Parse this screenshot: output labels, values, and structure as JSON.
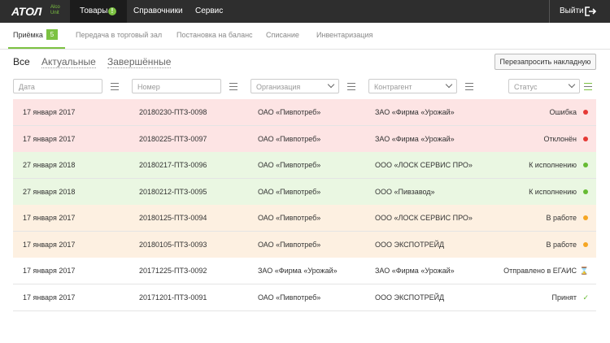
{
  "header": {
    "logo": "АТОЛ",
    "logo_sub": [
      "Alco",
      "Unit"
    ],
    "nav": [
      {
        "label": "Товары",
        "badge": "!"
      },
      {
        "label": "Справочники"
      },
      {
        "label": "Сервис"
      }
    ],
    "logout": "Выйти"
  },
  "subnav": {
    "tabs": [
      {
        "label": "Приёмка",
        "badge": "5"
      },
      {
        "label": "Передача в торговый зал"
      },
      {
        "label": "Постановка на баланс"
      },
      {
        "label": "Списание"
      },
      {
        "label": "Инвентаризация"
      }
    ]
  },
  "filters": {
    "views": [
      "Все",
      "Актуальные",
      "Завершённые"
    ],
    "button": "Перезапросить накладную",
    "fields": [
      "Дата",
      "Номер",
      "Организация",
      "Контрагент",
      "Статус"
    ]
  },
  "table": {
    "rows": [
      {
        "cells": [
          "17 января 2017",
          "20180230-ПТЗ-0098",
          "ОАО «Пивпотреб»",
          "ЗАО «Фирма «Урожай»",
          "Ошибка"
        ],
        "background": "#fde4e4",
        "dot": "#e53935"
      },
      {
        "cells": [
          "17 января 2017",
          "20180225-ПТЗ-0097",
          "ОАО «Пивпотреб»",
          "ЗАО «Фирма «Урожай»",
          "Отклонён"
        ],
        "background": "#fde4e4",
        "dot": "#e53935"
      },
      {
        "cells": [
          "27 января 2018",
          "20180217-ПТЗ-0096",
          "ОАО «Пивпотреб»",
          "ООО «ЛОСК СЕРВИС ПРО»",
          "К исполнению"
        ],
        "background": "#eaf7e2",
        "dot": "#66bb33"
      },
      {
        "cells": [
          "27 января 2018",
          "20180212-ПТЗ-0095",
          "ОАО «Пивпотреб»",
          "ООО «Пивзавод»",
          "К исполнению"
        ],
        "background": "#eaf7e2",
        "dot": "#66bb33"
      },
      {
        "cells": [
          "17 января 2017",
          "20180125-ПТЗ-0094",
          "ОАО «Пивпотреб»",
          "ООО «ЛОСК СЕРВИС ПРО»",
          "В работе"
        ],
        "background": "#fdf0e1",
        "dot": "#f5a623"
      },
      {
        "cells": [
          "17 января 2017",
          "20180105-ПТЗ-0093",
          "ОАО «Пивпотреб»",
          "ООО ЭКСПОТРЕЙД",
          "В работе"
        ],
        "background": "#fdf0e1",
        "dot": "#f5a623"
      },
      {
        "cells": [
          "17 января 2017",
          "20171225-ПТЗ-0092",
          "ЗАО «Фирма «Урожай»",
          "ЗАО «Фирма «Урожай»",
          "Отправлено в ЕГАИС"
        ],
        "background": "#ffffff",
        "icon": "⌛",
        "icon_color": "#999999"
      },
      {
        "cells": [
          "17 января 2017",
          "20171201-ПТЗ-0091",
          "ОАО «Пивпотреб»",
          "ООО ЭКСПОТРЕЙД",
          "Принят"
        ],
        "background": "#ffffff",
        "icon": "✓",
        "icon_color": "#66bb33"
      }
    ]
  }
}
